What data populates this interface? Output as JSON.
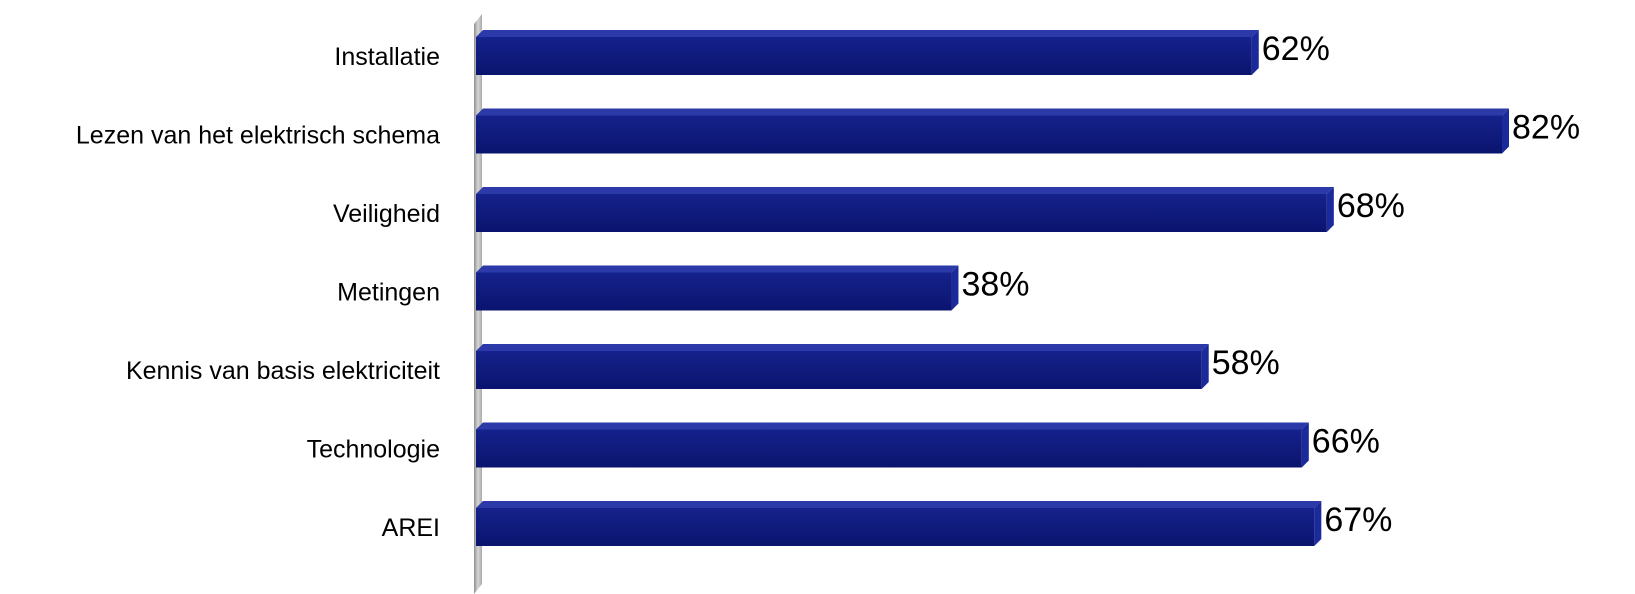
{
  "chart_data": {
    "type": "bar",
    "orientation": "horizontal",
    "title": "",
    "xlabel": "",
    "ylabel": "",
    "categories": [
      "Installatie",
      "Lezen van het elektrisch schema",
      "Veiligheid",
      "Metingen",
      "Kennis van basis elektriciteit",
      "Technologie",
      "AREI"
    ],
    "values": [
      62,
      82,
      68,
      38,
      58,
      66,
      67
    ],
    "value_labels": [
      "62%",
      "82%",
      "68%",
      "38%",
      "58%",
      "66%",
      "67%"
    ],
    "unit": "%",
    "xlim": [
      0,
      82
    ],
    "grid": false,
    "legend": "none",
    "colors": {
      "bar": "#0d1a80",
      "bar_top": "#2b3aa8",
      "bar_end": "#1b2a9a",
      "axis_wall": "#b8b8b8"
    }
  }
}
